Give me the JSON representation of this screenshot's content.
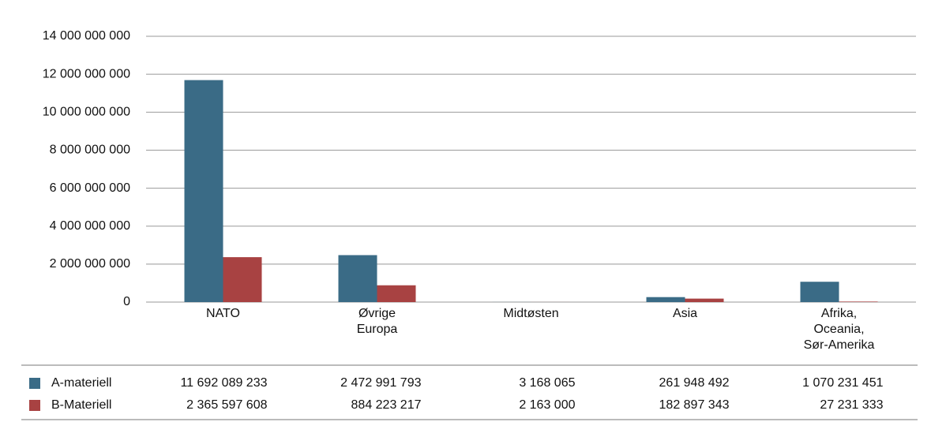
{
  "chart_data": {
    "type": "bar",
    "categories": [
      "NATO",
      "Øvrige\nEuropa",
      "Midtøsten",
      "Asia",
      "Afrika,\nOceania,\nSør-Amerika"
    ],
    "series": [
      {
        "name": "A-materiell",
        "color": "#3a6b86",
        "values": [
          11692089233,
          2472991793,
          3168065,
          261948492,
          1070231451
        ],
        "value_labels": [
          "11 692 089 233",
          "2 472 991 793",
          "3 168 065",
          "261 948 492",
          "1 070 231 451"
        ]
      },
      {
        "name": "B-Materiell",
        "color": "#a84242",
        "values": [
          2365597608,
          884223217,
          2163000,
          182897343,
          27231333
        ],
        "value_labels": [
          "2 365 597 608",
          "884 223 217",
          "2 163 000",
          "182 897 343",
          "27 231 333"
        ]
      }
    ],
    "ylim": [
      0,
      14000000000
    ],
    "yticks": [
      0,
      {
        "value": 2000000000,
        "label": "2 000 000 000"
      },
      {
        "value": 4000000000,
        "label": "4 000 000 000"
      },
      {
        "value": 6000000000,
        "label": "6 000 000 000"
      },
      {
        "value": 8000000000,
        "label": "8 000 000 000"
      },
      {
        "value": 10000000000,
        "label": "10 000 000 000"
      },
      {
        "value": 12000000000,
        "label": "12 000 000 000"
      },
      {
        "value": 14000000000,
        "label": "14 000 000 000"
      }
    ],
    "grid": true
  }
}
